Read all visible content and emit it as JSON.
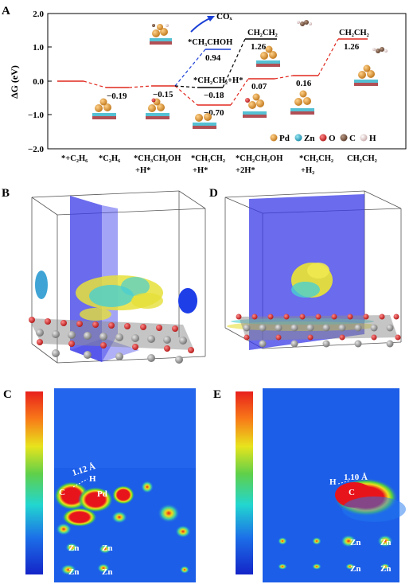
{
  "panelA": {
    "label": "A",
    "ylabel": "ΔG (eV)",
    "yticks": [
      "2.0",
      "1.0",
      "0.0",
      "−1.0",
      "−2.0"
    ],
    "xlabels": [
      {
        "l1": "*+C₂H₆",
        "l2": ""
      },
      {
        "l1": "*C₂H₆",
        "l2": ""
      },
      {
        "l1": "*CH₃CH₂OH",
        "l2": "+H*"
      },
      {
        "l1": "*CH₃CH₂",
        "l2": "+H*"
      },
      {
        "l1": "*CH₂CH₂OH",
        "l2": "+2H*"
      },
      {
        "l1": "*CH₂CH₂",
        "l2": "+H₂"
      },
      {
        "l1": "CH₂CH₂",
        "l2": ""
      }
    ],
    "energies": {
      "e1": "−0.19",
      "e2": "−0.15",
      "e3": "−0.70",
      "e4": "−0.18",
      "e5": "0.94",
      "e6": "1.26",
      "e7": "0.07",
      "e8": "0.16",
      "e9": "1.26"
    },
    "annotations": {
      "cox": "COₓ",
      "ch3choh": "*CH₃CHOH",
      "ch2ch2h": "*CH₂CH₂+H*",
      "ch2ch2_gas1": "CH₂CH₂",
      "ch2ch2_gas2": "CH₂CH₂"
    },
    "legend": [
      "Pd",
      "Zn",
      "O",
      "C",
      "H"
    ],
    "colors": {
      "red": "#e0291f",
      "blue": "#1a3fd6",
      "black": "#000000",
      "Pd": "#e39a2a",
      "Zn": "#2ab0c8",
      "O": "#d92020",
      "C": "#7a5a44",
      "H": "#e8c8c8"
    }
  },
  "panelB": {
    "label": "B"
  },
  "panelD": {
    "label": "D"
  },
  "panelC": {
    "label": "C",
    "distance": "1.12 Å",
    "atoms": {
      "c": "C",
      "h": "H",
      "pd": "Pd",
      "zn1": "Zn",
      "zn2": "Zn",
      "zn3": "Zn",
      "zn4": "Zn"
    }
  },
  "panelE": {
    "label": "E",
    "distance": "1.10 Å",
    "atoms": {
      "c": "C",
      "h": "H",
      "zn1": "Zn",
      "zn2": "Zn",
      "zn3": "Zn",
      "zn4": "Zn"
    }
  }
}
